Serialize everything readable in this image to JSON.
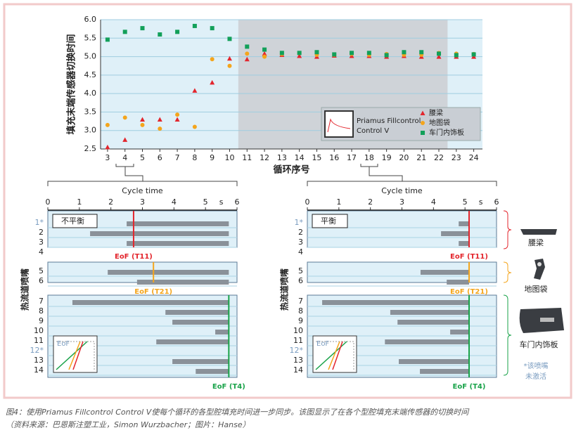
{
  "chart_data": [
    {
      "type": "scatter",
      "ylabel": "填充末端传感器切换时间",
      "xlabel": "循环序号",
      "x": [
        3,
        4,
        5,
        6,
        7,
        8,
        9,
        10,
        11,
        12,
        13,
        14,
        15,
        16,
        17,
        18,
        19,
        20,
        21,
        22,
        23,
        24
      ],
      "xlim": [
        2.6,
        24.5
      ],
      "xticks": [
        3,
        4,
        5,
        6,
        7,
        8,
        9,
        10,
        11,
        12,
        13,
        14,
        15,
        16,
        17,
        18,
        19,
        20,
        21,
        22,
        23,
        24
      ],
      "ylim": [
        2.5,
        6.0
      ],
      "yticks": [
        2.5,
        {
          "value": 3,
          "label": "3.0"
        },
        3.5,
        {
          "value": 4,
          "label": "4.0"
        },
        4.5,
        {
          "value": 5,
          "label": "5.0"
        },
        5.5,
        {
          "value": 6,
          "label": "6.0"
        }
      ],
      "grid": true,
      "shade": [
        10.5,
        22.5
      ],
      "inset_text": [
        "Priamus Fillcontrol",
        "Control V"
      ],
      "series": [
        {
          "name": "腰梁",
          "color": "#e3262d",
          "marker": "triangle",
          "values": [
            2.55,
            2.75,
            3.3,
            3.3,
            3.3,
            4.08,
            4.3,
            4.95,
            4.93,
            5.08,
            5.05,
            5.02,
            5.0,
            5.03,
            5.02,
            5.02,
            5.0,
            5.02,
            5.0,
            5.0,
            5.0,
            5.0
          ]
        },
        {
          "name": "地图袋",
          "color": "#f4a51c",
          "marker": "circle",
          "values": [
            3.15,
            3.35,
            3.15,
            3.05,
            3.43,
            3.1,
            4.93,
            4.75,
            5.08,
            5.0,
            5.07,
            5.1,
            5.05,
            5.05,
            5.07,
            5.05,
            5.07,
            5.05,
            5.05,
            5.1,
            5.08,
            5.07
          ]
        },
        {
          "name": "车门内饰板",
          "color": "#13a05a",
          "marker": "square",
          "values": [
            5.46,
            5.67,
            5.77,
            5.6,
            5.67,
            5.83,
            5.77,
            5.48,
            5.27,
            5.19,
            5.1,
            5.1,
            5.12,
            5.06,
            5.1,
            5.1,
            5.04,
            5.12,
            5.12,
            5.08,
            5.04,
            5.06
          ]
        }
      ]
    },
    {
      "type": "gantt",
      "xlabel": "Cycle time",
      "xunit": "s",
      "xlim": [
        0,
        6
      ],
      "xticks": [
        0,
        1,
        2,
        3,
        4,
        5,
        6
      ],
      "ylabel": "热流道喷嘴",
      "box_label": "不平衡",
      "inset_label": "EoF",
      "groups": [
        {
          "rows": [
            "1*",
            "2",
            "3",
            "4"
          ],
          "bars": [
            [
              2.5,
              5.74
            ],
            [
              1.34,
              5.74
            ],
            [
              2.5,
              5.74
            ],
            null
          ],
          "eof": 2.72,
          "eof_label": "EoF (T11)",
          "color": "#e3262d"
        },
        {
          "rows": [
            "5",
            "6"
          ],
          "bars": [
            [
              1.9,
              5.74
            ],
            [
              2.83,
              5.74
            ]
          ],
          "eof": 3.35,
          "eof_label": "EoF (T21)",
          "color": "#f4a51c"
        },
        {
          "rows": [
            "7",
            "8",
            "9",
            "10",
            "11",
            "12*",
            "13",
            "14"
          ],
          "bars": [
            [
              0.78,
              5.74
            ],
            [
              3.73,
              5.74
            ],
            [
              3.95,
              5.74
            ],
            [
              5.31,
              5.74
            ],
            [
              3.44,
              5.74
            ],
            null,
            [
              3.95,
              5.74
            ],
            [
              4.69,
              5.74
            ]
          ],
          "eof": 5.74,
          "eof_label": "EoF (T4)",
          "color": "#1aa34a"
        }
      ]
    },
    {
      "type": "gantt",
      "xlabel": "Cycle time",
      "xunit": "s",
      "xlim": [
        0,
        6
      ],
      "xticks": [
        0,
        1,
        2,
        3,
        4,
        5,
        6
      ],
      "ylabel": "热流道喷嘴",
      "box_label": "平衡",
      "inset_label": "EoF",
      "groups": [
        {
          "rows": [
            "1*",
            "2",
            "3",
            "4"
          ],
          "bars": [
            [
              4.8,
              5.13
            ],
            [
              4.24,
              5.13
            ],
            [
              4.8,
              5.13
            ],
            null
          ],
          "eof": 5.13,
          "eof_label": "EoF (T11)",
          "color": "#e3262d"
        },
        {
          "rows": [
            "5",
            "6"
          ],
          "bars": [
            [
              3.59,
              5.13
            ],
            [
              4.42,
              5.13
            ]
          ],
          "eof": 5.13,
          "eof_label": "EoF (T21)",
          "color": "#f4a51c"
        },
        {
          "rows": [
            "7",
            "8",
            "9",
            "10",
            "11",
            "12*",
            "13",
            "14"
          ],
          "bars": [
            [
              0.47,
              5.13
            ],
            [
              2.63,
              5.13
            ],
            [
              2.86,
              5.13
            ],
            [
              4.53,
              5.13
            ],
            [
              2.46,
              5.13
            ],
            null,
            [
              2.9,
              5.13
            ],
            [
              3.57,
              5.13
            ]
          ],
          "eof": 5.13,
          "eof_label": "EoF (T4)",
          "color": "#1aa34a"
        }
      ]
    }
  ],
  "part_labels": [
    "腰梁",
    "地图袋",
    "车门内饰板"
  ],
  "note": [
    "*该喷嘴",
    "未激活"
  ],
  "caption": [
    "图4：使用Priamus Fillcontrol Control V使每个循环的各型腔填充时间进一步同步。该图显示了在各个型腔填充末端传感器的切换时间",
    "（资料来源：巴恩斯注塑工业，Simon Wurzbacher；图片：Hanse）"
  ]
}
